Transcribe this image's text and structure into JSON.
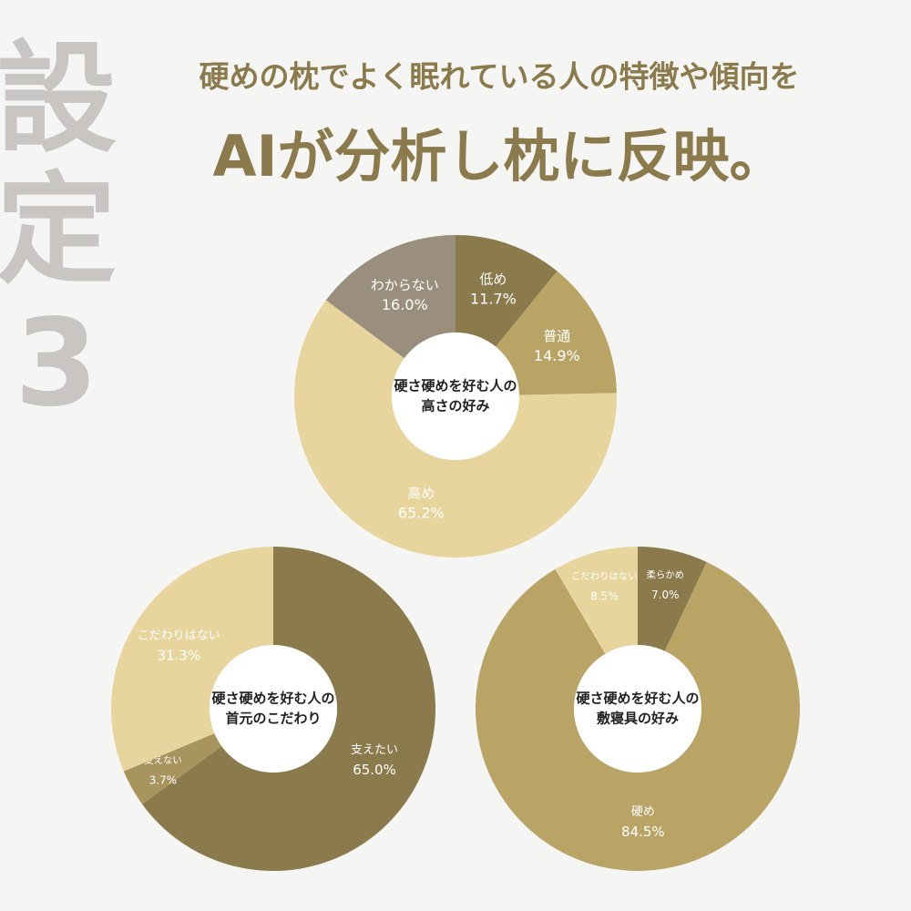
{
  "header": {
    "side_label": [
      "設",
      "定",
      "3"
    ],
    "title_line1": "硬めの枕でよく眠れている人の特徴や傾向を",
    "title_line2": "AIが分析し枕に反映。"
  },
  "chart_data": [
    {
      "type": "pie",
      "title_lines": [
        "硬さ硬めを好む人の",
        "高さの好み"
      ],
      "categories": [
        "低め",
        "普通",
        "高め",
        "わからない"
      ],
      "values": [
        11.7,
        14.9,
        65.2,
        16.0
      ],
      "value_labels": [
        "11.7%",
        "14.9%",
        "65.2%",
        "16.0%"
      ],
      "colors": [
        "#8b7a4c",
        "#b9a466",
        "#e8d59d",
        "#9a8f7d"
      ]
    },
    {
      "type": "pie",
      "title_lines": [
        "硬さ硬めを好む人の",
        "首元のこだわり"
      ],
      "categories": [
        "支えたい",
        "支えない",
        "こだわりはない"
      ],
      "values": [
        65.0,
        3.7,
        31.3
      ],
      "value_labels": [
        "65.0%",
        "3.7%",
        "31.3%"
      ],
      "colors": [
        "#8b7a4c",
        "#a8955e",
        "#e8d59d"
      ]
    },
    {
      "type": "pie",
      "title_lines": [
        "硬さ硬めを好む人の",
        "敷寝具の好み"
      ],
      "categories": [
        "柔らかめ",
        "硬め",
        "こだわりはない"
      ],
      "values": [
        7.0,
        84.5,
        8.5
      ],
      "value_labels": [
        "7.0%",
        "84.5%",
        "8.5%"
      ],
      "colors": [
        "#8b7a4c",
        "#b9a466",
        "#e8d59d"
      ]
    }
  ]
}
